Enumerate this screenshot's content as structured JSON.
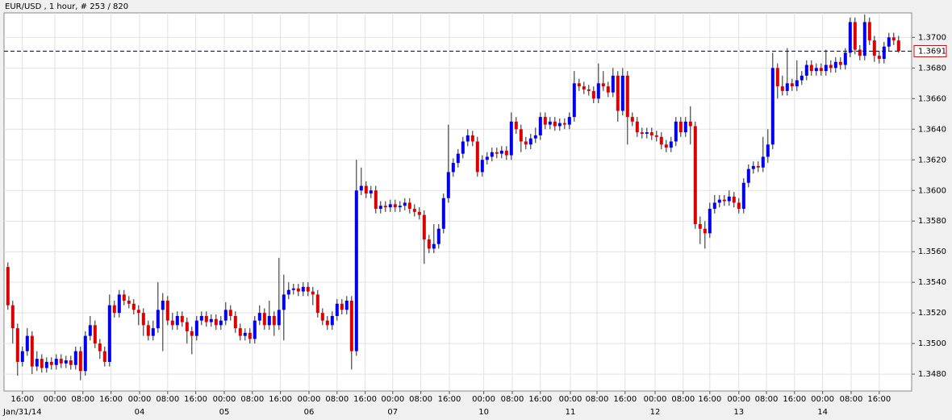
{
  "chart_data": {
    "type": "candlestick",
    "title": "EUR/USD , 1 hour, # 253 / 820",
    "up_color": "#0000ee",
    "down_color": "#dd0000",
    "wick_color": "#222222",
    "grid": true,
    "ylim": [
      1.3469,
      1.3716
    ],
    "yticks": [
      {
        "value": 1.348,
        "label": "1.3480"
      },
      {
        "value": 1.35,
        "label": "1.3500"
      },
      {
        "value": 1.352,
        "label": "1.3520"
      },
      {
        "value": 1.354,
        "label": "1.3540"
      },
      {
        "value": 1.356,
        "label": "1.3560"
      },
      {
        "value": 1.358,
        "label": "1.3580"
      },
      {
        "value": 1.36,
        "label": "1.3600"
      },
      {
        "value": 1.362,
        "label": "1.3620"
      },
      {
        "value": 1.364,
        "label": "1.3640"
      },
      {
        "value": 1.366,
        "label": "1.3660"
      },
      {
        "value": 1.368,
        "label": "1.3680"
      },
      {
        "value": 1.37,
        "label": "1.3700"
      }
    ],
    "xlim": [
      -0.8,
      186.7
    ],
    "xticks": [
      {
        "value": 3,
        "label": "16:00"
      },
      {
        "value": 9.7,
        "label": "00:00"
      },
      {
        "value": 15.5,
        "label": "08:00"
      },
      {
        "value": 21.3,
        "label": "16:00"
      },
      {
        "value": 27.2,
        "label": "00:00"
      },
      {
        "value": 33,
        "label": "08:00"
      },
      {
        "value": 38.8,
        "label": "16:00"
      },
      {
        "value": 44.7,
        "label": "00:00"
      },
      {
        "value": 50.5,
        "label": "08:00"
      },
      {
        "value": 56.3,
        "label": "16:00"
      },
      {
        "value": 62.2,
        "label": "00:00"
      },
      {
        "value": 68,
        "label": "08:00"
      },
      {
        "value": 73.8,
        "label": "16:00"
      },
      {
        "value": 79.5,
        "label": "00:00"
      },
      {
        "value": 85.3,
        "label": "08:00"
      },
      {
        "value": 91.2,
        "label": "16:00"
      },
      {
        "value": 98.3,
        "label": "00:00"
      },
      {
        "value": 104.2,
        "label": "08:00"
      },
      {
        "value": 110,
        "label": "16:00"
      },
      {
        "value": 116.2,
        "label": "00:00"
      },
      {
        "value": 121.7,
        "label": "08:00"
      },
      {
        "value": 127.5,
        "label": "16:00"
      },
      {
        "value": 133.7,
        "label": "00:00"
      },
      {
        "value": 139.5,
        "label": "08:00"
      },
      {
        "value": 145,
        "label": "16:00"
      },
      {
        "value": 151,
        "label": "00:00"
      },
      {
        "value": 156.7,
        "label": "08:00"
      },
      {
        "value": 162.5,
        "label": "16:00"
      },
      {
        "value": 168.3,
        "label": "00:00"
      },
      {
        "value": 174.2,
        "label": "08:00"
      },
      {
        "value": 180,
        "label": "16:00"
      }
    ],
    "date_labels": [
      {
        "value": 3,
        "label": "Jan/31/14"
      },
      {
        "value": 27.2,
        "label": "04"
      },
      {
        "value": 44.7,
        "label": "05"
      },
      {
        "value": 62.2,
        "label": "06"
      },
      {
        "value": 79.5,
        "label": "07"
      },
      {
        "value": 98.3,
        "label": "10"
      },
      {
        "value": 116.2,
        "label": "11"
      },
      {
        "value": 133.7,
        "label": "12"
      },
      {
        "value": 151,
        "label": "13"
      },
      {
        "value": 168.3,
        "label": "14"
      }
    ],
    "last_price": {
      "value": 1.3691,
      "label": "1.3691"
    },
    "open": [
      1.355,
      1.3525,
      1.351,
      1.3488,
      1.3495,
      1.3505,
      1.3485,
      1.349,
      1.3484,
      1.3488,
      1.3486,
      1.349,
      1.3487,
      1.3489,
      1.3486,
      1.3495,
      1.3482,
      1.3505,
      1.3512,
      1.35,
      1.3495,
      1.3488,
      1.3525,
      1.352,
      1.3532,
      1.3528,
      1.3526,
      1.3522,
      1.352,
      1.3512,
      1.3505,
      1.351,
      1.3522,
      1.3528,
      1.3515,
      1.3512,
      1.3518,
      1.3514,
      1.3508,
      1.3505,
      1.3515,
      1.3518,
      1.3514,
      1.3516,
      1.3512,
      1.3515,
      1.3522,
      1.3518,
      1.351,
      1.3505,
      1.3507,
      1.3503,
      1.3515,
      1.352,
      1.3512,
      1.3518,
      1.3512,
      1.3522,
      1.3532,
      1.3535,
      1.3536,
      1.3534,
      1.3537,
      1.3534,
      1.3532,
      1.352,
      1.3515,
      1.3512,
      1.3518,
      1.3526,
      1.3522,
      1.3528,
      1.3495,
      1.36,
      1.3603,
      1.3598,
      1.36,
      1.3588,
      1.359,
      1.3589,
      1.3591,
      1.3589,
      1.359,
      1.3592,
      1.3588,
      1.3586,
      1.3584,
      1.3568,
      1.3562,
      1.3565,
      1.3575,
      1.3595,
      1.3612,
      1.3618,
      1.3624,
      1.3632,
      1.3636,
      1.3632,
      1.3612,
      1.362,
      1.3622,
      1.3625,
      1.3624,
      1.3626,
      1.3623,
      1.3645,
      1.364,
      1.3632,
      1.363,
      1.3634,
      1.3636,
      1.3648,
      1.3643,
      1.3645,
      1.3642,
      1.3644,
      1.3643,
      1.3648,
      1.367,
      1.3668,
      1.3666,
      1.3665,
      1.366,
      1.367,
      1.3668,
      1.3664,
      1.3675,
      1.3652,
      1.3675,
      1.3648,
      1.3645,
      1.3638,
      1.3637,
      1.3638,
      1.3636,
      1.3635,
      1.363,
      1.3628,
      1.3632,
      1.3645,
      1.3638,
      1.3645,
      1.3642,
      1.3578,
      1.3575,
      1.3572,
      1.3588,
      1.3592,
      1.3594,
      1.3593,
      1.3596,
      1.3592,
      1.3588,
      1.3605,
      1.3614,
      1.3616,
      1.3615,
      1.3622,
      1.363,
      1.368,
      1.3668,
      1.3665,
      1.367,
      1.3668,
      1.3672,
      1.3675,
      1.3682,
      1.3678,
      1.368,
      1.3678,
      1.3682,
      1.368,
      1.3684,
      1.3682,
      1.369,
      1.371,
      1.3692,
      1.3688,
      1.371,
      1.3698,
      1.3688,
      1.3686,
      1.3694,
      1.37,
      1.3698
    ],
    "high": [
      1.3553,
      1.3528,
      1.3513,
      1.3498,
      1.351,
      1.3508,
      1.3495,
      1.3493,
      1.3491,
      1.3491,
      1.3493,
      1.3493,
      1.3492,
      1.3492,
      1.3498,
      1.3498,
      1.3508,
      1.3518,
      1.3515,
      1.3503,
      1.3498,
      1.3532,
      1.3528,
      1.3535,
      1.3535,
      1.3531,
      1.3529,
      1.3525,
      1.3523,
      1.3515,
      1.3515,
      1.354,
      1.3533,
      1.3531,
      1.352,
      1.3521,
      1.3521,
      1.3517,
      1.3511,
      1.3518,
      1.3521,
      1.3521,
      1.3519,
      1.3519,
      1.3518,
      1.3527,
      1.3525,
      1.3521,
      1.3513,
      1.351,
      1.351,
      1.3518,
      1.3525,
      1.3523,
      1.3528,
      1.3521,
      1.3556,
      1.3545,
      1.354,
      1.3539,
      1.3539,
      1.354,
      1.354,
      1.3537,
      1.3535,
      1.3523,
      1.3518,
      1.3521,
      1.3529,
      1.3529,
      1.3531,
      1.3531,
      1.362,
      1.3615,
      1.3606,
      1.3603,
      1.3603,
      1.3593,
      1.3593,
      1.3594,
      1.3594,
      1.3593,
      1.3595,
      1.3595,
      1.3591,
      1.3589,
      1.3587,
      1.3571,
      1.3578,
      1.3578,
      1.3598,
      1.3643,
      1.3621,
      1.3627,
      1.3635,
      1.364,
      1.3639,
      1.3635,
      1.3623,
      1.3625,
      1.3628,
      1.3628,
      1.3629,
      1.3629,
      1.3651,
      1.3648,
      1.3643,
      1.3635,
      1.3637,
      1.3641,
      1.3651,
      1.3651,
      1.3648,
      1.3648,
      1.3647,
      1.3647,
      1.3651,
      1.3678,
      1.3673,
      1.3671,
      1.3669,
      1.3668,
      1.3683,
      1.3678,
      1.3671,
      1.368,
      1.3678,
      1.368,
      1.3678,
      1.3651,
      1.3648,
      1.3641,
      1.3641,
      1.3641,
      1.3639,
      1.3638,
      1.3633,
      1.3635,
      1.3648,
      1.3648,
      1.3648,
      1.3655,
      1.3645,
      1.3583,
      1.358,
      1.3592,
      1.3597,
      1.3597,
      1.3597,
      1.36,
      1.3599,
      1.3595,
      1.3608,
      1.3617,
      1.3619,
      1.3619,
      1.3635,
      1.364,
      1.369,
      1.3683,
      1.3675,
      1.3693,
      1.3673,
      1.3685,
      1.3678,
      1.3685,
      1.3685,
      1.3683,
      1.3683,
      1.3692,
      1.3685,
      1.3687,
      1.3687,
      1.3693,
      1.3713,
      1.3713,
      1.3695,
      1.3715,
      1.3713,
      1.3701,
      1.3691,
      1.3697,
      1.3703,
      1.3703,
      1.3701
    ],
    "low": [
      1.3522,
      1.35,
      1.3479,
      1.3485,
      1.3492,
      1.348,
      1.3482,
      1.3481,
      1.3481,
      1.3483,
      1.3483,
      1.3484,
      1.3484,
      1.3483,
      1.3483,
      1.3476,
      1.3479,
      1.3502,
      1.3497,
      1.349,
      1.3485,
      1.3485,
      1.3517,
      1.3517,
      1.3525,
      1.3523,
      1.3519,
      1.3512,
      1.3505,
      1.3502,
      1.3502,
      1.3507,
      1.3495,
      1.3512,
      1.3509,
      1.3509,
      1.3511,
      1.35,
      1.3493,
      1.3502,
      1.3512,
      1.3511,
      1.3511,
      1.3509,
      1.3509,
      1.3512,
      1.3515,
      1.3507,
      1.3502,
      1.3502,
      1.35,
      1.35,
      1.3512,
      1.3509,
      1.3509,
      1.3505,
      1.3509,
      1.3502,
      1.3529,
      1.3532,
      1.3531,
      1.3531,
      1.3531,
      1.3525,
      1.3517,
      1.3512,
      1.3509,
      1.3509,
      1.3515,
      1.3519,
      1.3519,
      1.3483,
      1.3492,
      1.3597,
      1.3595,
      1.3595,
      1.3585,
      1.3585,
      1.3586,
      1.3586,
      1.3586,
      1.3586,
      1.3587,
      1.3585,
      1.3583,
      1.3581,
      1.3552,
      1.3559,
      1.3559,
      1.3562,
      1.3572,
      1.3592,
      1.3609,
      1.3615,
      1.3621,
      1.3629,
      1.3629,
      1.3609,
      1.3609,
      1.3617,
      1.3619,
      1.3621,
      1.3621,
      1.362,
      1.362,
      1.3637,
      1.3625,
      1.3627,
      1.3627,
      1.3631,
      1.3633,
      1.364,
      1.364,
      1.3639,
      1.3639,
      1.364,
      1.364,
      1.3645,
      1.3665,
      1.3663,
      1.3662,
      1.3657,
      1.3657,
      1.3665,
      1.3661,
      1.3661,
      1.3645,
      1.3649,
      1.363,
      1.3642,
      1.3635,
      1.3634,
      1.3634,
      1.3633,
      1.3632,
      1.3627,
      1.3625,
      1.3625,
      1.3629,
      1.3635,
      1.3635,
      1.363,
      1.3575,
      1.3565,
      1.3562,
      1.3569,
      1.3585,
      1.3589,
      1.359,
      1.359,
      1.3589,
      1.3585,
      1.3585,
      1.3602,
      1.3611,
      1.3612,
      1.3612,
      1.3618,
      1.3627,
      1.366,
      1.3662,
      1.3662,
      1.3665,
      1.3665,
      1.3669,
      1.3672,
      1.3675,
      1.3675,
      1.3675,
      1.3675,
      1.3677,
      1.3677,
      1.3679,
      1.3679,
      1.3687,
      1.3689,
      1.3685,
      1.3685,
      1.3695,
      1.3684,
      1.3683,
      1.3683,
      1.3691,
      1.3695,
      1.369
    ],
    "close": [
      1.3525,
      1.351,
      1.3488,
      1.3495,
      1.3505,
      1.3485,
      1.349,
      1.3484,
      1.3488,
      1.3486,
      1.349,
      1.3487,
      1.3489,
      1.3486,
      1.3495,
      1.3482,
      1.3505,
      1.3512,
      1.35,
      1.3495,
      1.3488,
      1.3525,
      1.352,
      1.3532,
      1.3528,
      1.3526,
      1.3522,
      1.352,
      1.3512,
      1.3505,
      1.351,
      1.3522,
      1.3528,
      1.3515,
      1.3512,
      1.3518,
      1.3514,
      1.3508,
      1.3505,
      1.3515,
      1.3518,
      1.3514,
      1.3516,
      1.3512,
      1.3515,
      1.3522,
      1.3518,
      1.351,
      1.3505,
      1.3507,
      1.3503,
      1.3515,
      1.352,
      1.3512,
      1.3518,
      1.3512,
      1.3522,
      1.3532,
      1.3535,
      1.3536,
      1.3534,
      1.3537,
      1.3534,
      1.3532,
      1.352,
      1.3515,
      1.3512,
      1.3518,
      1.3526,
      1.3522,
      1.3528,
      1.3495,
      1.36,
      1.3603,
      1.3598,
      1.36,
      1.3588,
      1.359,
      1.3589,
      1.3591,
      1.3589,
      1.359,
      1.3592,
      1.3588,
      1.3586,
      1.3584,
      1.3568,
      1.3562,
      1.3565,
      1.3575,
      1.3595,
      1.3612,
      1.3618,
      1.3624,
      1.3632,
      1.3636,
      1.3632,
      1.3612,
      1.362,
      1.3622,
      1.3625,
      1.3624,
      1.3626,
      1.3623,
      1.3645,
      1.364,
      1.3632,
      1.363,
      1.3634,
      1.3636,
      1.3648,
      1.3643,
      1.3645,
      1.3642,
      1.3644,
      1.3643,
      1.3648,
      1.367,
      1.3668,
      1.3666,
      1.3665,
      1.366,
      1.367,
      1.3668,
      1.3664,
      1.3675,
      1.3652,
      1.3675,
      1.3648,
      1.3645,
      1.3638,
      1.3637,
      1.3638,
      1.3636,
      1.3635,
      1.363,
      1.3628,
      1.3632,
      1.3645,
      1.3638,
      1.3645,
      1.3642,
      1.3578,
      1.3575,
      1.3572,
      1.3588,
      1.3592,
      1.3594,
      1.3593,
      1.3596,
      1.3592,
      1.3588,
      1.3605,
      1.3614,
      1.3616,
      1.3615,
      1.3622,
      1.363,
      1.368,
      1.3668,
      1.3665,
      1.367,
      1.3668,
      1.3672,
      1.3675,
      1.3682,
      1.3678,
      1.368,
      1.3678,
      1.3682,
      1.368,
      1.3684,
      1.3682,
      1.369,
      1.371,
      1.3692,
      1.3688,
      1.371,
      1.3698,
      1.3688,
      1.3686,
      1.3694,
      1.37,
      1.3698,
      1.3691
    ]
  }
}
